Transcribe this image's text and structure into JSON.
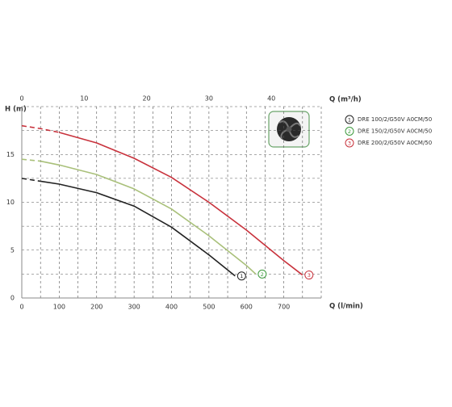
{
  "chart_data": {
    "type": "line",
    "ylabel": "H (m)",
    "xlabel": "Q (l/min)",
    "x2label": "Q (m³/h)",
    "xlim": [
      0,
      800
    ],
    "xticks": [
      0,
      100,
      200,
      300,
      400,
      500,
      600,
      700
    ],
    "x2lim": [
      0,
      48
    ],
    "x2ticks": [
      0,
      10,
      20,
      30,
      40
    ],
    "ylim": [
      0,
      20
    ],
    "yticks": [
      0,
      5,
      10,
      15
    ],
    "xgrid": [
      50,
      100,
      150,
      200,
      250,
      300,
      350,
      400,
      450,
      500,
      550,
      600,
      650,
      700,
      750,
      800
    ],
    "ygrid": [
      2.5,
      5,
      7.5,
      10,
      12.5,
      15,
      17.5,
      20
    ],
    "series": [
      {
        "name": "DRE 100/2/G50V A0CM/50",
        "marker_label": "1",
        "color": "#222222",
        "label_color": "#222222",
        "dash_end": 1,
        "x": [
          0,
          50,
          100,
          200,
          300,
          400,
          500,
          570
        ],
        "values": [
          12.5,
          12.2,
          11.9,
          11.0,
          9.6,
          7.4,
          4.5,
          2.3
        ]
      },
      {
        "name": "DRE 150/2/G50V A0CM/50",
        "marker_label": "2",
        "color": "#a9c07a",
        "label_color": "#3d9a3d",
        "dash_end": 1,
        "x": [
          0,
          50,
          100,
          200,
          300,
          400,
          500,
          600,
          625
        ],
        "values": [
          14.5,
          14.3,
          13.9,
          12.9,
          11.4,
          9.3,
          6.5,
          3.4,
          2.5
        ]
      },
      {
        "name": "DRE 200/2/G50V A0CM/50",
        "marker_label": "3",
        "color": "#c8323c",
        "label_color": "#c8323c",
        "dash_end": 2,
        "x": [
          0,
          50,
          100,
          200,
          300,
          400,
          500,
          600,
          700,
          750
        ],
        "values": [
          18.0,
          17.7,
          17.3,
          16.2,
          14.6,
          12.6,
          10.0,
          7.1,
          3.9,
          2.4
        ]
      }
    ]
  }
}
